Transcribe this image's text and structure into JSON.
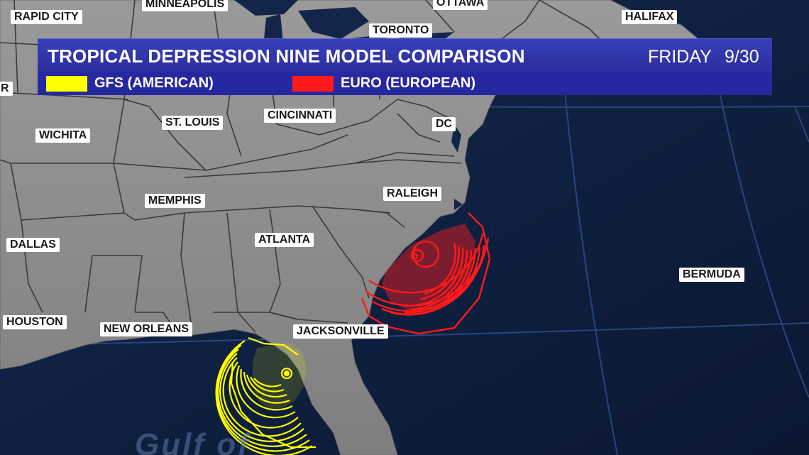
{
  "header": {
    "title": "TROPICAL DEPRESSION NINE MODEL COMPARISON",
    "day": "FRIDAY",
    "date": "9/30"
  },
  "legend": [
    {
      "label": "GFS (AMERICAN)",
      "color": "#ffff00"
    },
    {
      "label": "EURO (EUROPEAN)",
      "color": "#ff1a1a"
    }
  ],
  "cities": {
    "rapid_city": "RAPID CITY",
    "minneapolis": "MINNEAPOLIS",
    "ottawa": "OTTAWA",
    "toronto": "TORONTO",
    "halifax": "HALIFAX",
    "wichita": "WICHITA",
    "st_louis": "ST. LOUIS",
    "cincinnati": "CINCINNATI",
    "dc": "DC",
    "memphis": "MEMPHIS",
    "raleigh": "RALEIGH",
    "atlanta": "ATLANTA",
    "dallas": "DALLAS",
    "bermuda": "BERMUDA",
    "houston": "HOUSTON",
    "new_orleans": "NEW ORLEANS",
    "jacksonville": "JACKSONVILLE",
    "partial_left": "R"
  },
  "water_label": "Gulf of",
  "colors": {
    "ocean": "#0d1e3d",
    "land": "#8e8e8e",
    "title_bar": "#2e32a6",
    "gfs": "#ffff00",
    "euro": "#ff1a1a"
  }
}
